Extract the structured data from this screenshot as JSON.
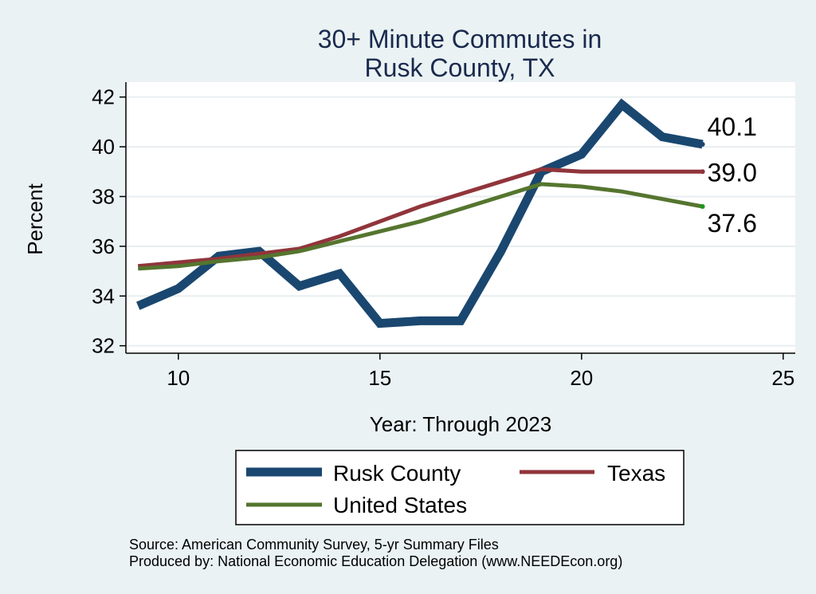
{
  "chart_data": {
    "type": "line",
    "title": [
      "30+ Minute Commutes in",
      "Rusk County, TX"
    ],
    "xlabel": "Year: Through 2023",
    "ylabel": "Percent",
    "xlim": [
      8.7,
      25.3
    ],
    "ylim": [
      31.7,
      42.6
    ],
    "xticks": [
      10,
      15,
      20,
      25
    ],
    "yticks": [
      32,
      34,
      36,
      38,
      40,
      42
    ],
    "grid": "horizontal",
    "legend_position": "bottom",
    "series": [
      {
        "name": "Rusk County",
        "color": "#1a476f",
        "x": [
          9,
          10,
          11,
          12,
          13,
          14,
          15,
          16,
          17,
          18,
          19,
          20,
          21,
          22,
          23
        ],
        "values": [
          33.6,
          34.3,
          35.6,
          35.8,
          34.4,
          34.9,
          32.9,
          33.0,
          33.0,
          35.8,
          39.0,
          39.7,
          41.7,
          40.4,
          40.1
        ],
        "end_label": "40.1"
      },
      {
        "name": "Texas",
        "color": "#90353b",
        "x": [
          9,
          10,
          11,
          12,
          13,
          14,
          15,
          16,
          17,
          18,
          19,
          20,
          21,
          22,
          23
        ],
        "values": [
          35.2,
          35.35,
          35.5,
          35.7,
          35.9,
          36.4,
          37.0,
          37.6,
          38.1,
          38.6,
          39.1,
          39.0,
          39.0,
          39.0,
          39.0
        ],
        "end_label": "39.0"
      },
      {
        "name": "United States",
        "color": "#55752f",
        "x": [
          9,
          10,
          11,
          12,
          13,
          14,
          15,
          16,
          17,
          18,
          19,
          20,
          21,
          22,
          23
        ],
        "values": [
          35.1,
          35.2,
          35.4,
          35.55,
          35.8,
          36.2,
          36.6,
          37.0,
          37.5,
          38.0,
          38.5,
          38.4,
          38.2,
          37.9,
          37.6
        ],
        "end_label": "37.6"
      }
    ]
  },
  "source": {
    "line1": "Source: American Community Survey, 5-yr Summary Files",
    "line2": "Produced by: National Economic Education Delegation (www.NEEDEcon.org)"
  }
}
